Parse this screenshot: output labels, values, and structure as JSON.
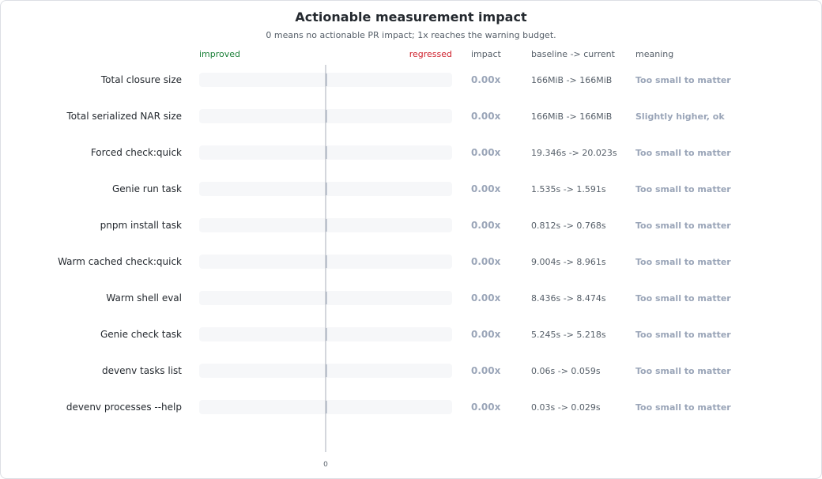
{
  "chart_data": {
    "type": "bar",
    "title": "Actionable measurement impact",
    "subtitle": "0 means no actionable PR impact; 1x reaches the warning budget.",
    "axis_left_label": "improved",
    "axis_right_label": "regressed",
    "column_headers": {
      "impact": "impact",
      "baseline": "baseline -> current",
      "meaning": "meaning"
    },
    "x_tick_label": "0",
    "xlim": [
      -1,
      1
    ],
    "categories": [
      "Total closure size",
      "Total serialized NAR size",
      "Forced check:quick",
      "Genie run task",
      "pnpm install task",
      "Warm cached check:quick",
      "Warm shell eval",
      "Genie check task",
      "devenv tasks list",
      "devenv processes --help"
    ],
    "values": [
      0,
      0,
      0,
      0,
      0,
      0,
      0,
      0,
      0,
      0
    ],
    "impact_labels": [
      "0.00x",
      "0.00x",
      "0.00x",
      "0.00x",
      "0.00x",
      "0.00x",
      "0.00x",
      "0.00x",
      "0.00x",
      "0.00x"
    ],
    "baseline_current": [
      "166MiB -> 166MiB",
      "166MiB -> 166MiB",
      "19.346s -> 20.023s",
      "1.535s -> 1.591s",
      "0.812s -> 0.768s",
      "9.004s -> 8.961s",
      "8.436s -> 8.474s",
      "5.245s -> 5.218s",
      "0.06s -> 0.059s",
      "0.03s -> 0.029s"
    ],
    "meanings": [
      "Too small to matter",
      "Slightly higher, ok",
      "Too small to matter",
      "Too small to matter",
      "Too small to matter",
      "Too small to matter",
      "Too small to matter",
      "Too small to matter",
      "Too small to matter",
      "Too small to matter"
    ],
    "colors": {
      "improved": "#1a7f37",
      "regressed": "#cf222e",
      "neutral": "#9aa5b8",
      "track": "#f6f7f9",
      "axis": "#b7bcc4"
    },
    "grid": false,
    "legend": "none"
  }
}
